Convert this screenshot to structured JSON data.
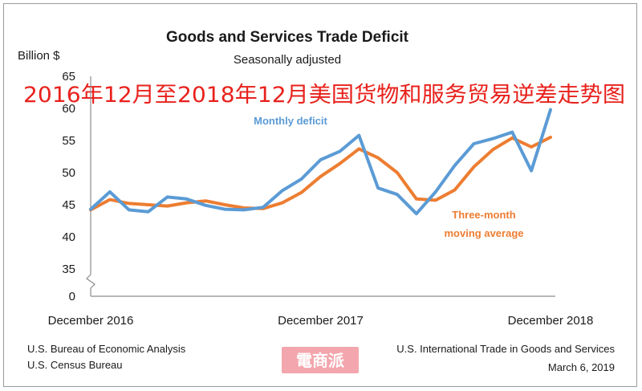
{
  "chart_data": {
    "type": "line",
    "title": "Goods and Services Trade Deficit",
    "subtitle": "Seasonally adjusted",
    "ylabel": "Billion $",
    "overlay_title": "2016年12月至2018年12月美国货物和服务贸易逆差走势图",
    "yticks": [
      "0",
      "35",
      "40",
      "45",
      "50",
      "55",
      "60",
      "65"
    ],
    "ylim": [
      35,
      65
    ],
    "y_axis_break": true,
    "x_tick_labels": [
      "December 2016",
      "December 2017",
      "December 2018"
    ],
    "x": [
      "Dec 2016",
      "Jan 2017",
      "Feb 2017",
      "Mar 2017",
      "Apr 2017",
      "May 2017",
      "Jun 2017",
      "Jul 2017",
      "Aug 2017",
      "Sep 2017",
      "Oct 2017",
      "Nov 2017",
      "Dec 2017",
      "Jan 2018",
      "Feb 2018",
      "Mar 2018",
      "Apr 2018",
      "May 2018",
      "Jun 2018",
      "Jul 2018",
      "Aug 2018",
      "Sep 2018",
      "Oct 2018",
      "Nov 2018",
      "Dec 2018"
    ],
    "series": [
      {
        "name": "Monthly deficit",
        "color": "#5b9bd5",
        "values": [
          44.3,
          47.0,
          44.2,
          43.9,
          46.2,
          45.9,
          44.9,
          44.3,
          44.2,
          44.6,
          47.2,
          49.0,
          52.0,
          53.3,
          55.8,
          47.6,
          46.6,
          43.6,
          47.0,
          51.1,
          54.5,
          55.3,
          56.3,
          50.3,
          59.8
        ]
      },
      {
        "name": "Three-month moving average",
        "color": "#ed7d31",
        "values": [
          44.2,
          45.8,
          45.2,
          45.0,
          44.8,
          45.3,
          45.6,
          45.0,
          44.5,
          44.4,
          45.3,
          46.9,
          49.4,
          51.4,
          53.7,
          52.3,
          50.0,
          45.9,
          45.7,
          47.3,
          50.9,
          53.6,
          55.4,
          54.0,
          55.5
        ]
      }
    ],
    "annotations": {
      "monthly": "Monthly deficit",
      "ma_line1": "Three-month",
      "ma_line2": "moving average"
    },
    "grid": false,
    "legend": "inline labels"
  },
  "footer": {
    "left_line1": "U.S. Bureau of Economic Analysis",
    "left_line2": "U.S. Census Bureau",
    "right_line1": "U.S. International Trade in Goods and Services",
    "right_line2": "March 6, 2019"
  },
  "watermark": {
    "text": "電商派",
    "color": "#f3a6ad"
  }
}
